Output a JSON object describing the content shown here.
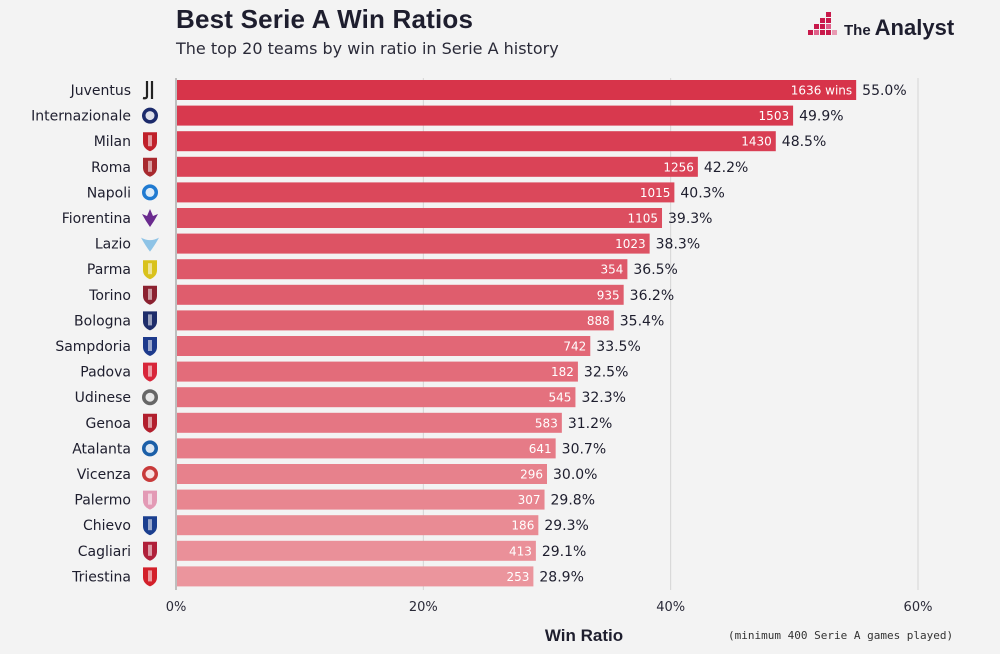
{
  "header": {
    "title": "Best Serie A Win Ratios",
    "subtitle": "The top 20 teams by win ratio in Serie A history"
  },
  "brand": {
    "the": "The",
    "name": "Analyst",
    "color": "#c8194b"
  },
  "footer": {
    "xlabel": "Win Ratio",
    "note": "(minimum 400 Serie A games played)"
  },
  "chart_data": {
    "type": "bar",
    "orientation": "horizontal",
    "title": "Best Serie A Win Ratios",
    "subtitle": "The top 20 teams by win ratio in Serie A history",
    "xlabel": "Win Ratio",
    "xlim": [
      0,
      60
    ],
    "xticks": [
      0,
      20,
      40,
      60
    ],
    "xtick_labels": [
      "0%",
      "20%",
      "40%",
      "60%"
    ],
    "grid": "vertical",
    "categories": [
      "Juventus",
      "Internazionale",
      "Milan",
      "Roma",
      "Napoli",
      "Fiorentina",
      "Lazio",
      "Parma",
      "Torino",
      "Bologna",
      "Sampdoria",
      "Padova",
      "Udinese",
      "Genoa",
      "Atalanta",
      "Vicenza",
      "Palermo",
      "Chievo",
      "Cagliari",
      "Triestina"
    ],
    "values": [
      55.0,
      49.9,
      48.5,
      42.2,
      40.3,
      39.3,
      38.3,
      36.5,
      36.2,
      35.4,
      33.5,
      32.5,
      32.3,
      31.2,
      30.7,
      30.0,
      29.8,
      29.3,
      29.1,
      28.9
    ],
    "value_labels": [
      "55.0%",
      "49.9%",
      "48.5%",
      "42.2%",
      "40.3%",
      "39.3%",
      "38.3%",
      "36.5%",
      "36.2%",
      "35.4%",
      "33.5%",
      "32.5%",
      "32.3%",
      "31.2%",
      "30.7%",
      "30.0%",
      "29.8%",
      "29.3%",
      "29.1%",
      "28.9%"
    ],
    "wins": [
      1636,
      1503,
      1430,
      1256,
      1015,
      1105,
      1023,
      354,
      935,
      888,
      742,
      182,
      545,
      583,
      641,
      296,
      307,
      186,
      413,
      253
    ],
    "wins_labels": [
      "1636 wins",
      "1503",
      "1430",
      "1256",
      "1015",
      "1105",
      "1023",
      "354",
      "935",
      "888",
      "742",
      "182",
      "545",
      "583",
      "641",
      "296",
      "307",
      "186",
      "413",
      "253"
    ],
    "bar_color_start": "#d7344a",
    "bar_color_end": "#eb959d",
    "crests": [
      {
        "type": "juve",
        "color": "#222222"
      },
      {
        "type": "ring",
        "color": "#1b2a6b"
      },
      {
        "type": "shield",
        "color": "#c0202a"
      },
      {
        "type": "shield",
        "color": "#a8292e"
      },
      {
        "type": "ring",
        "color": "#1f7ad1"
      },
      {
        "type": "lily",
        "color": "#6a2a8e"
      },
      {
        "type": "eagle",
        "color": "#8ec3e6"
      },
      {
        "type": "shield",
        "color": "#d9c21c"
      },
      {
        "type": "shield",
        "color": "#8b2130"
      },
      {
        "type": "shield",
        "color": "#1e2d6b"
      },
      {
        "type": "shield",
        "color": "#1d3a8c"
      },
      {
        "type": "shield",
        "color": "#d8263a"
      },
      {
        "type": "ring",
        "color": "#666666"
      },
      {
        "type": "shield",
        "color": "#b21f2d"
      },
      {
        "type": "ring",
        "color": "#1b5fa8"
      },
      {
        "type": "ring",
        "color": "#c83a3a"
      },
      {
        "type": "shield",
        "color": "#e39ab5"
      },
      {
        "type": "shield",
        "color": "#1b3f8f"
      },
      {
        "type": "shield",
        "color": "#b0203a"
      },
      {
        "type": "shield",
        "color": "#d3202a"
      }
    ]
  }
}
